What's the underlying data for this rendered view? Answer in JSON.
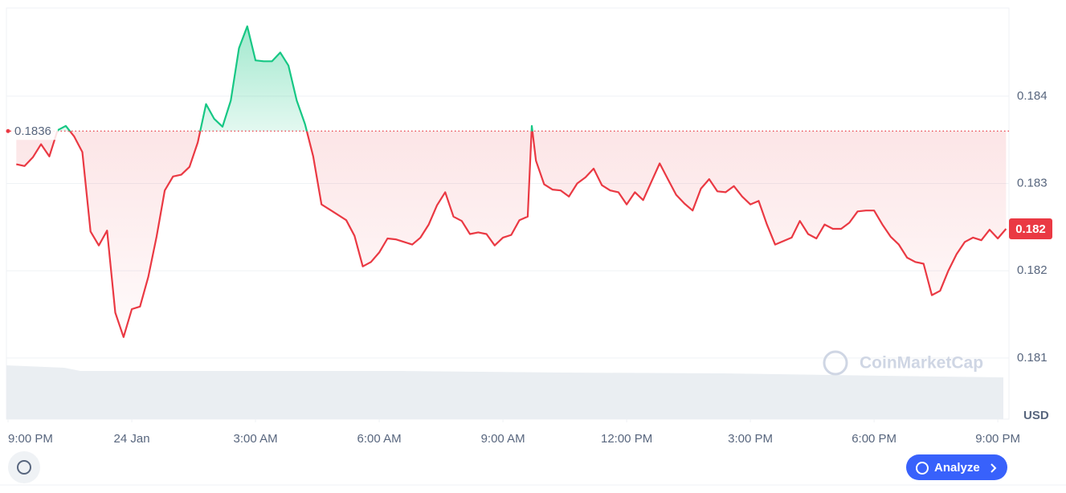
{
  "chart_data": {
    "type": "line",
    "x": [
      0.2,
      0.4,
      0.6,
      0.8,
      1.0,
      1.2,
      1.4,
      1.6,
      1.8,
      2.0,
      2.2,
      2.4,
      2.6,
      2.8,
      3.0,
      3.2,
      3.4,
      3.6,
      3.8,
      4.0,
      4.2,
      4.4,
      4.6,
      4.8,
      5.0,
      5.2,
      5.4,
      5.6,
      5.8,
      6.0,
      6.2,
      6.4,
      6.6,
      6.8,
      7.0,
      7.2,
      7.4,
      7.6,
      7.8,
      8.0,
      8.2,
      8.4,
      8.6,
      8.8,
      9.0,
      9.2,
      9.4,
      9.6,
      9.8,
      10.0,
      10.2,
      10.4,
      10.6,
      10.8,
      11.0,
      11.2,
      11.4,
      11.6,
      11.8,
      12.0,
      12.2,
      12.4,
      12.6,
      12.7,
      12.8,
      13.0,
      13.2,
      13.4,
      13.6,
      13.8,
      14.0,
      14.2,
      14.4,
      14.6,
      14.8,
      15.0,
      15.2,
      15.4,
      15.6,
      15.8,
      16.0,
      16.2,
      16.4,
      16.6,
      16.8,
      17.0,
      17.2,
      17.4,
      17.6,
      17.8,
      18.0,
      18.2,
      18.4,
      18.6,
      18.8,
      19.0,
      19.2,
      19.4,
      19.6,
      19.8,
      20.0,
      20.2,
      20.4,
      20.6,
      20.8,
      21.0,
      21.2,
      21.4,
      21.6,
      21.8,
      22.0,
      22.2,
      22.4,
      22.6,
      22.8,
      23.0,
      23.2,
      23.4,
      23.6,
      23.8,
      24.0,
      24.2
    ],
    "values": [
      0.18322,
      0.1832,
      0.1833,
      0.18345,
      0.18331,
      0.18361,
      0.18366,
      0.18354,
      0.18336,
      0.18245,
      0.18229,
      0.18246,
      0.18152,
      0.18124,
      0.18156,
      0.18159,
      0.18193,
      0.18239,
      0.18292,
      0.18308,
      0.1831,
      0.18319,
      0.18347,
      0.18391,
      0.18374,
      0.18365,
      0.18395,
      0.18455,
      0.1848,
      0.18441,
      0.1844,
      0.1844,
      0.1845,
      0.18435,
      0.18395,
      0.18368,
      0.18331,
      0.18276,
      0.1827,
      0.18264,
      0.18258,
      0.1824,
      0.18205,
      0.1821,
      0.18221,
      0.18237,
      0.18236,
      0.18233,
      0.1823,
      0.18238,
      0.18253,
      0.18275,
      0.1829,
      0.18262,
      0.18257,
      0.18242,
      0.18244,
      0.18242,
      0.18229,
      0.18238,
      0.18241,
      0.18258,
      0.18262,
      0.18366,
      0.18326,
      0.18299,
      0.18293,
      0.18292,
      0.18285,
      0.183,
      0.18307,
      0.18317,
      0.18298,
      0.18292,
      0.1829,
      0.18276,
      0.1829,
      0.18281,
      0.18302,
      0.18323,
      0.18305,
      0.18287,
      0.18277,
      0.18269,
      0.18294,
      0.18305,
      0.18291,
      0.1829,
      0.18297,
      0.18285,
      0.18276,
      0.1828,
      0.18253,
      0.1823,
      0.18234,
      0.18238,
      0.18257,
      0.18242,
      0.18237,
      0.18253,
      0.18248,
      0.18248,
      0.18255,
      0.18268,
      0.18269,
      0.18269,
      0.18253,
      0.18239,
      0.1823,
      0.18215,
      0.1821,
      0.18208,
      0.18172,
      0.18177,
      0.182,
      0.18219,
      0.18233,
      0.18238,
      0.18235,
      0.18247,
      0.18237,
      0.18248
    ],
    "reference": 0.1836,
    "up_color": "#16c784",
    "down_color": "#ea3943",
    "current_price_label": "0.182",
    "xlim": [
      -0.04,
      24.27
    ],
    "xticks": [
      {
        "value": 0,
        "label": "9:00 PM"
      },
      {
        "value": 3,
        "label": "24 Jan"
      },
      {
        "value": 6,
        "label": "3:00 AM"
      },
      {
        "value": 9,
        "label": "6:00 AM"
      },
      {
        "value": 12,
        "label": "9:00 AM"
      },
      {
        "value": 15,
        "label": "12:00 PM"
      },
      {
        "value": 18,
        "label": "3:00 PM"
      },
      {
        "value": 21,
        "label": "6:00 PM"
      },
      {
        "value": 24,
        "label": "9:00 PM"
      }
    ],
    "ylim": [
      0.1803,
      0.18501
    ],
    "yticks": [
      0.181,
      0.182,
      0.183,
      0.184
    ],
    "y_unit": "USD",
    "grid": true,
    "watermark": "CoinMarketCap",
    "button": "Analyze"
  }
}
